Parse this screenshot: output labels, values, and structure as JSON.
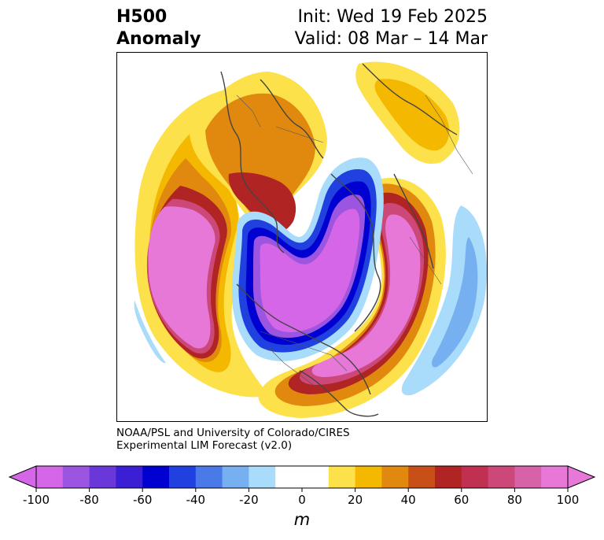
{
  "title": {
    "line1": "H500",
    "line2": "Anomaly"
  },
  "init": {
    "line1": "Init: Wed 19 Feb 2025",
    "line2": "Valid: 08 Mar – 14 Mar"
  },
  "credit": {
    "line1": "NOAA/PSL and University of Colorado/CIRES",
    "line2": "Experimental LIM Forecast (v2.0)"
  },
  "colorbar": {
    "units": "m",
    "tick_labels": [
      "-100",
      "-80",
      "-60",
      "-40",
      "-20",
      "0",
      "20",
      "40",
      "60",
      "80",
      "100"
    ],
    "colors": [
      "#d566e8",
      "#9c55e0",
      "#6a38d8",
      "#3b1fd4",
      "#0000d0",
      "#2040e0",
      "#4a7ae8",
      "#76b0f0",
      "#a8dcfa",
      "#ffffff",
      "#ffffff",
      "#fde14a",
      "#f4b800",
      "#e0890e",
      "#c85018",
      "#b02424",
      "#c03050",
      "#cc4878",
      "#d862a8",
      "#e878d8"
    ]
  },
  "map": {
    "projection": "north-polar stereographic",
    "field": "500 hPa geopotential height anomaly",
    "features": [
      {
        "name": "negative anomaly over Arctic / Greenland / North Atlantic",
        "sign": "negative"
      },
      {
        "name": "positive anomaly over North Pacific",
        "sign": "positive"
      },
      {
        "name": "positive anomaly over Europe",
        "sign": "positive"
      },
      {
        "name": "positive anomaly over eastern United States",
        "sign": "positive"
      },
      {
        "name": "positive anomaly over Siberia / East Asia",
        "sign": "positive"
      }
    ]
  }
}
